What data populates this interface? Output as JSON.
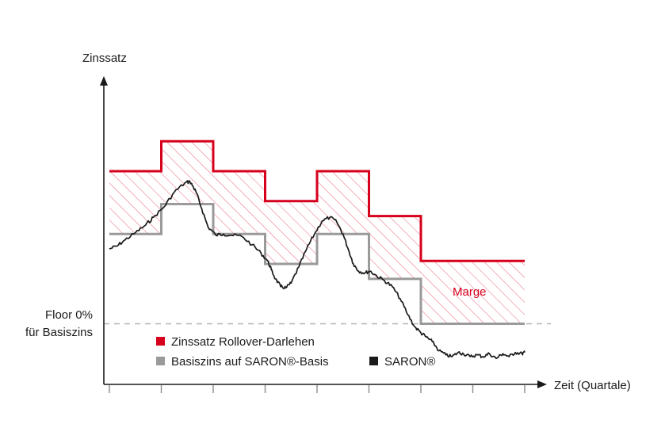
{
  "chart_data": {
    "type": "line",
    "title": "",
    "ylabel": "Zinssatz",
    "xlabel": "Zeit (Quartale)",
    "x_ticks": [
      0,
      1,
      2,
      3,
      4,
      5,
      6,
      7,
      8
    ],
    "ylim": [
      -1.1,
      3.5
    ],
    "xlim": [
      0,
      8.3
    ],
    "floor": {
      "value": 0,
      "label_line1": "Floor 0%",
      "label_line2": "für Basiszins"
    },
    "band_label": "Marge",
    "colors": {
      "rollover": "#d6001c",
      "basis": "#9a9a9a",
      "saron": "#1a1a1a",
      "floor": "#b5b5b5",
      "axis": "#1a1a1a"
    },
    "series": [
      {
        "name": "Zinssatz Rollover-Darlehen",
        "type": "step",
        "values": [
          2.55,
          3.05,
          2.55,
          2.05,
          2.55,
          1.8,
          1.05,
          1.05
        ]
      },
      {
        "name": "Basiszins auf SARON®-Basis",
        "type": "step",
        "values": [
          1.5,
          2.0,
          1.5,
          1.0,
          1.5,
          0.75,
          0.0,
          0.0
        ]
      },
      {
        "name": "SARON®",
        "type": "line",
        "x": [
          0.0,
          0.15,
          0.3,
          0.5,
          0.7,
          0.85,
          1.05,
          1.25,
          1.45,
          1.55,
          1.62,
          1.68,
          1.78,
          1.9,
          2.05,
          2.2,
          2.35,
          2.55,
          2.75,
          2.92,
          3.05,
          3.12,
          3.2,
          3.3,
          3.4,
          3.5,
          3.65,
          3.8,
          3.95,
          4.1,
          4.25,
          4.38,
          4.5,
          4.6,
          4.7,
          4.8,
          4.92,
          5.02,
          5.15,
          5.3,
          5.45,
          5.6,
          5.75,
          5.88,
          6.0,
          6.1,
          6.22,
          6.35,
          6.48,
          6.6,
          6.72,
          6.82,
          6.95,
          7.08,
          7.2,
          7.32,
          7.45,
          7.58,
          7.7,
          7.82,
          7.95,
          8.0
        ],
        "values": [
          1.25,
          1.3,
          1.4,
          1.52,
          1.65,
          1.78,
          1.95,
          2.2,
          2.35,
          2.38,
          2.28,
          2.18,
          1.92,
          1.62,
          1.48,
          1.5,
          1.48,
          1.46,
          1.32,
          1.18,
          1.05,
          0.9,
          0.75,
          0.62,
          0.6,
          0.68,
          0.95,
          1.25,
          1.5,
          1.72,
          1.78,
          1.7,
          1.5,
          1.25,
          1.0,
          0.88,
          0.85,
          0.88,
          0.8,
          0.72,
          0.62,
          0.42,
          0.15,
          -0.05,
          -0.15,
          -0.22,
          -0.3,
          -0.45,
          -0.52,
          -0.55,
          -0.48,
          -0.5,
          -0.55,
          -0.52,
          -0.55,
          -0.5,
          -0.58,
          -0.5,
          -0.55,
          -0.48,
          -0.5,
          -0.48
        ]
      }
    ],
    "legend": {
      "placement": "bottom-left",
      "entries": [
        "Zinssatz Rollover-Darlehen",
        "Basiszins auf SARON®-Basis",
        "SARON®"
      ]
    },
    "grid": false
  }
}
